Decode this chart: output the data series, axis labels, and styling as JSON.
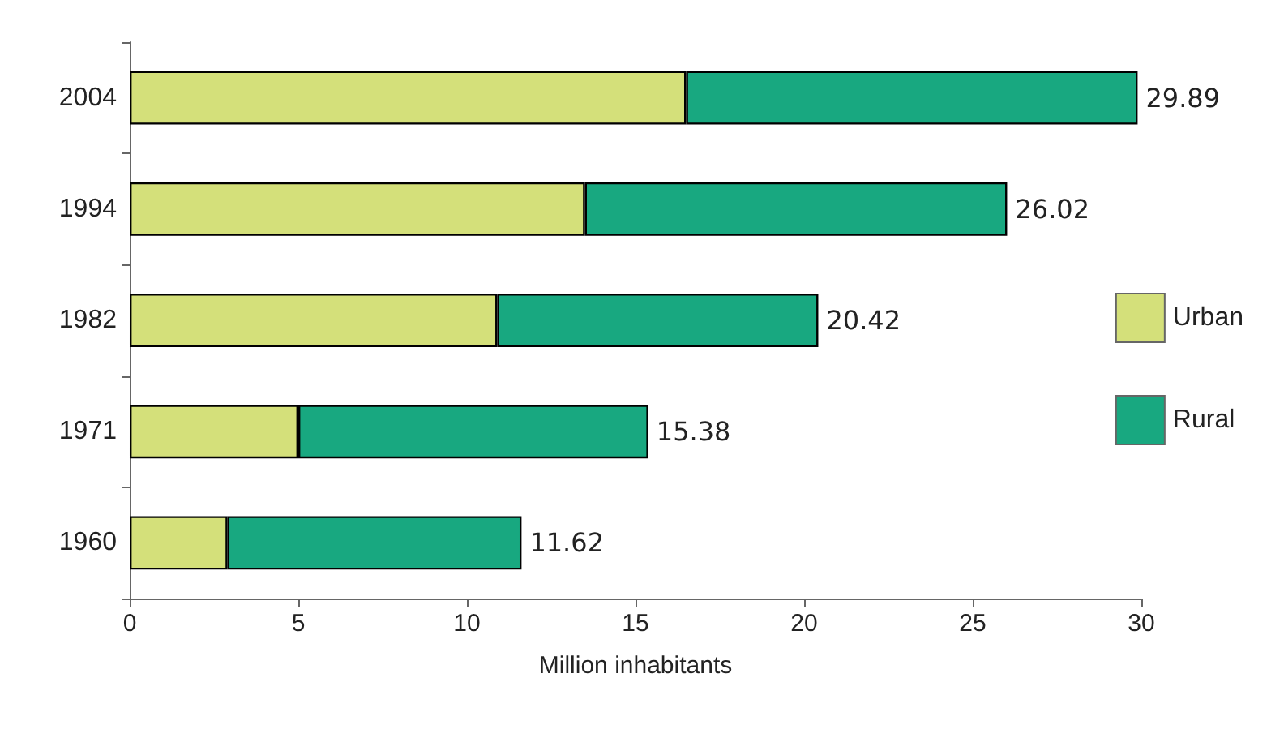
{
  "chart_data": {
    "type": "bar",
    "orientation": "horizontal",
    "stacked": true,
    "xlabel": "Million inhabitants",
    "categories": [
      "2004",
      "1994",
      "1982",
      "1971",
      "1960"
    ],
    "series": [
      {
        "name": "Urban",
        "color": "#d4e07a",
        "values": [
          16.5,
          13.5,
          10.9,
          5.0,
          2.9
        ]
      },
      {
        "name": "Rural",
        "color": "#18a880",
        "values": [
          13.39,
          12.52,
          9.52,
          10.38,
          8.72
        ]
      }
    ],
    "totals": [
      "29.89",
      "26.02",
      "20.42",
      "15.38",
      "11.62"
    ],
    "xlim": [
      0,
      30
    ],
    "xticks": [
      0,
      5,
      10,
      15,
      20,
      25,
      30
    ],
    "grid": false,
    "legend": "right"
  }
}
